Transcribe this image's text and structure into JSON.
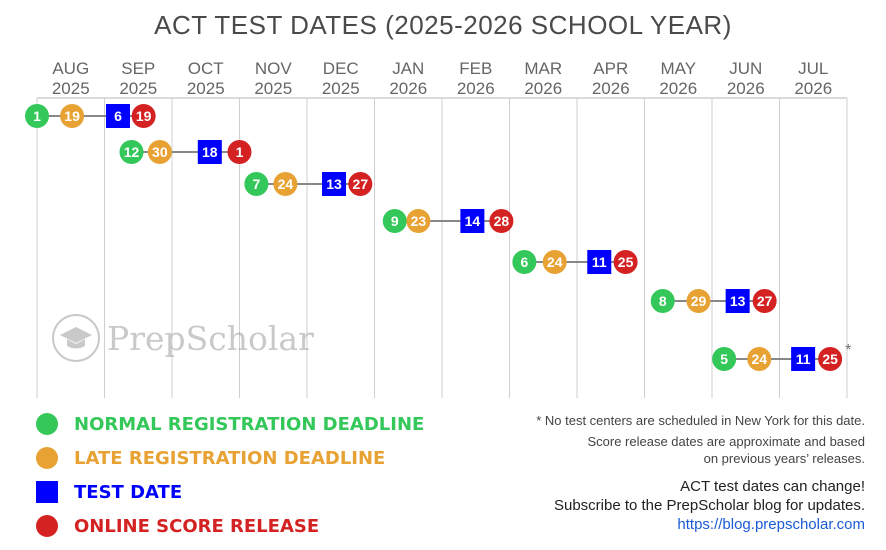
{
  "title": "ACT TEST DATES (2025-2026 SCHOOL YEAR)",
  "months": [
    {
      "month": "AUG",
      "year": "2025"
    },
    {
      "month": "SEP",
      "year": "2025"
    },
    {
      "month": "OCT",
      "year": "2025"
    },
    {
      "month": "NOV",
      "year": "2025"
    },
    {
      "month": "DEC",
      "year": "2025"
    },
    {
      "month": "JAN",
      "year": "2026"
    },
    {
      "month": "FEB",
      "year": "2026"
    },
    {
      "month": "MAR",
      "year": "2026"
    },
    {
      "month": "APR",
      "year": "2026"
    },
    {
      "month": "MAY",
      "year": "2026"
    },
    {
      "month": "JUN",
      "year": "2026"
    },
    {
      "month": "JUL",
      "year": "2026"
    }
  ],
  "test_rows": [
    {
      "normal": "1",
      "late": "19",
      "test": "6",
      "score": "19",
      "asterisk": false,
      "month_index": {
        "normal": 0,
        "late": 0,
        "test": 1,
        "score": 1
      },
      "day_fraction": {
        "normal": 0.0,
        "late": 0.52,
        "test": 0.2,
        "score": 0.58
      }
    },
    {
      "normal": "12",
      "late": "30",
      "test": "18",
      "score": "1",
      "asterisk": false,
      "month_index": {
        "normal": 1,
        "late": 1,
        "test": 2,
        "score": 3
      },
      "day_fraction": {
        "normal": 0.4,
        "late": 0.82,
        "test": 0.56,
        "score": 0.0
      }
    },
    {
      "normal": "7",
      "late": "24",
      "test": "13",
      "score": "27",
      "asterisk": false,
      "month_index": {
        "normal": 3,
        "late": 3,
        "test": 4,
        "score": 4
      },
      "day_fraction": {
        "normal": 0.25,
        "late": 0.68,
        "test": 0.4,
        "score": 0.79
      }
    },
    {
      "normal": "9",
      "late": "23",
      "test": "14",
      "score": "28",
      "asterisk": false,
      "month_index": {
        "normal": 5,
        "late": 5,
        "test": 6,
        "score": 6
      },
      "day_fraction": {
        "normal": 0.3,
        "late": 0.65,
        "test": 0.45,
        "score": 0.88
      }
    },
    {
      "normal": "6",
      "late": "24",
      "test": "11",
      "score": "25",
      "asterisk": false,
      "month_index": {
        "normal": 7,
        "late": 7,
        "test": 8,
        "score": 8
      },
      "day_fraction": {
        "normal": 0.22,
        "late": 0.67,
        "test": 0.33,
        "score": 0.72
      }
    },
    {
      "normal": "8",
      "late": "29",
      "test": "13",
      "score": "27",
      "asterisk": false,
      "month_index": {
        "normal": 9,
        "late": 9,
        "test": 10,
        "score": 10
      },
      "day_fraction": {
        "normal": 0.27,
        "late": 0.8,
        "test": 0.38,
        "score": 0.78
      }
    },
    {
      "normal": "5",
      "late": "24",
      "test": "11",
      "score": "25",
      "asterisk": true,
      "month_index": {
        "normal": 10,
        "late": 10,
        "test": 11,
        "score": 11
      },
      "day_fraction": {
        "normal": 0.18,
        "late": 0.7,
        "test": 0.35,
        "score": 0.75
      }
    }
  ],
  "asterisk_symbol": "*",
  "legend": [
    {
      "label": "NORMAL REGISTRATION DEADLINE",
      "color": "#34c759",
      "shape": "circle"
    },
    {
      "label": "LATE REGISTRATION DEADLINE",
      "color": "#e8a233",
      "shape": "circle"
    },
    {
      "label": "TEST DATE",
      "color": "#0000ff",
      "shape": "square"
    },
    {
      "label": "ONLINE SCORE RELEASE",
      "color": "#d42222",
      "shape": "circle"
    }
  ],
  "colors": {
    "normal": "#34c759",
    "late": "#e8a233",
    "test": "#0000ff",
    "score": "#d42222",
    "grid": "#cfcfcf",
    "connector": "#888888",
    "text": "#666666"
  },
  "notes": {
    "line1": "* No test centers are scheduled in New York for this date.",
    "line2": "Score release dates are approximate and based",
    "line3": "on previous years’ releases."
  },
  "update": {
    "line1": "ACT test dates can change!",
    "line2": "Subscribe to the PrepScholar blog for updates.",
    "link": "https://blog.prepscholar.com"
  },
  "watermark": {
    "text": "PrepScholar",
    "icon": "graduation-cap-icon"
  }
}
